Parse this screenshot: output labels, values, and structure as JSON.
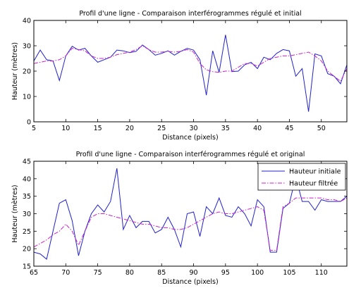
{
  "chart_data": [
    {
      "type": "line",
      "title": "Profil d'une ligne - Comparaison interférogrammes régulé et initial",
      "xlabel": "Distance (pixels)",
      "ylabel": "Hauteur (mètres)",
      "xlim": [
        5,
        54
      ],
      "ylim": [
        0,
        40
      ],
      "xticks": [
        5,
        10,
        15,
        20,
        25,
        30,
        35,
        40,
        45,
        50
      ],
      "yticks": [
        0,
        10,
        20,
        30,
        40
      ],
      "grid": false,
      "series": [
        {
          "style": "solid",
          "color": "#2222cc",
          "x": [
            5,
            6,
            7,
            8,
            9,
            10,
            11,
            12,
            13,
            14,
            15,
            16,
            17,
            18,
            19,
            20,
            21,
            22,
            23,
            24,
            25,
            26,
            27,
            28,
            29,
            30,
            31,
            32,
            33,
            34,
            35,
            36,
            37,
            38,
            39,
            40,
            41,
            42,
            43,
            44,
            45,
            46,
            47,
            48,
            49,
            50,
            51,
            52,
            53,
            54
          ],
          "y": [
            24,
            28.3,
            24.5,
            24,
            16.3,
            26,
            29.8,
            28.3,
            29,
            26,
            23.5,
            24.5,
            25.5,
            28.3,
            28,
            27.3,
            27.8,
            30.3,
            28.5,
            26.3,
            27,
            28,
            26.3,
            27.8,
            29,
            28.3,
            24.5,
            10.5,
            28,
            19.5,
            34.3,
            19.8,
            20,
            22.5,
            23.5,
            21,
            25.5,
            24.5,
            27,
            28.5,
            28,
            18,
            21,
            4,
            26.8,
            26,
            19,
            18,
            15,
            22.5
          ]
        },
        {
          "style": "dashdot",
          "color": "#cc22cc",
          "x": [
            5,
            6,
            7,
            8,
            9,
            10,
            11,
            12,
            13,
            14,
            15,
            16,
            17,
            18,
            19,
            20,
            21,
            22,
            23,
            24,
            25,
            26,
            27,
            28,
            29,
            30,
            31,
            32,
            33,
            34,
            35,
            36,
            37,
            38,
            39,
            40,
            41,
            42,
            43,
            44,
            45,
            46,
            47,
            48,
            49,
            50,
            51,
            52,
            53,
            54
          ],
          "y": [
            23,
            23.5,
            24,
            24,
            24.5,
            26,
            29,
            28.5,
            28,
            26,
            25,
            25,
            25.5,
            26.5,
            27,
            27.5,
            28.5,
            30,
            28.5,
            27.5,
            27.5,
            27.8,
            27.5,
            27.8,
            28.5,
            27.5,
            23,
            20.5,
            19.8,
            19.5,
            20,
            20,
            21.5,
            23,
            23,
            22,
            23.5,
            25,
            25.5,
            26,
            26,
            26.5,
            27,
            27.5,
            26,
            24,
            20,
            18,
            16,
            21
          ]
        }
      ]
    },
    {
      "type": "line",
      "title": "Profil d'une ligne - Comparaison interférogrammes régulé et original",
      "xlabel": "Distance (pixels)",
      "ylabel": "Hauteur (mètres)",
      "xlim": [
        65,
        114
      ],
      "ylim": [
        15,
        45
      ],
      "xticks": [
        65,
        70,
        75,
        80,
        85,
        90,
        95,
        100,
        105,
        110
      ],
      "yticks": [
        15,
        20,
        25,
        30,
        35,
        40,
        45
      ],
      "grid": false,
      "legend_position": "top-right",
      "series": [
        {
          "name": "Hauteur initiale",
          "style": "solid",
          "color": "#2222cc",
          "x": [
            65,
            66,
            67,
            68,
            69,
            70,
            71,
            72,
            73,
            74,
            75,
            76,
            77,
            78,
            79,
            80,
            81,
            82,
            83,
            84,
            85,
            86,
            87,
            88,
            89,
            90,
            91,
            92,
            93,
            94,
            95,
            96,
            97,
            98,
            99,
            100,
            101,
            102,
            103,
            104,
            105,
            106,
            107,
            108,
            109,
            110,
            111,
            112,
            113,
            114
          ],
          "y": [
            19,
            18.5,
            17,
            25,
            33,
            34,
            28,
            18,
            25,
            30,
            32.5,
            30.5,
            33.5,
            43,
            25.5,
            29.5,
            26,
            27.8,
            27.8,
            24.5,
            25.5,
            29,
            25.5,
            20.5,
            30,
            30.5,
            23.5,
            32,
            30,
            34.5,
            29.5,
            29,
            32,
            30,
            26.5,
            34,
            32,
            19,
            19,
            31.5,
            33,
            40.5,
            33.5,
            33.5,
            31,
            34,
            33.5,
            33.5,
            33.5,
            35
          ]
        },
        {
          "name": "Hauteur filtrée",
          "style": "dashdot",
          "color": "#cc22cc",
          "x": [
            65,
            66,
            67,
            68,
            69,
            70,
            71,
            72,
            73,
            74,
            75,
            76,
            77,
            78,
            79,
            80,
            81,
            82,
            83,
            84,
            85,
            86,
            87,
            88,
            89,
            90,
            91,
            92,
            93,
            94,
            95,
            96,
            97,
            98,
            99,
            100,
            101,
            102,
            103,
            104,
            105,
            106,
            107,
            108,
            109,
            110,
            111,
            112,
            113,
            114
          ],
          "y": [
            20.5,
            21.5,
            22.5,
            24,
            25,
            27,
            25,
            21,
            25,
            29,
            30,
            30,
            29.5,
            29,
            28.5,
            28,
            27.5,
            27,
            27,
            26.5,
            26,
            26,
            25.5,
            25.5,
            26,
            27,
            28,
            29,
            30,
            30.5,
            30,
            30,
            30.5,
            31,
            31.5,
            32,
            31,
            19.5,
            19.5,
            32,
            33,
            34.5,
            34.5,
            34.5,
            34.5,
            34.5,
            34,
            34,
            33.5,
            34.5
          ]
        }
      ]
    }
  ]
}
